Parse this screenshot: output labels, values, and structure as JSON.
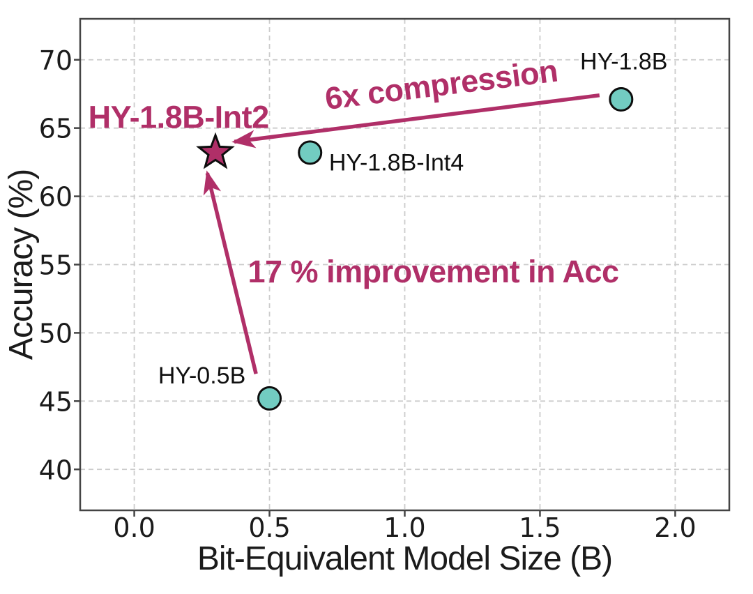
{
  "figure": {
    "background": "#ffffff",
    "title": ""
  },
  "colors": {
    "accent": "#b02f68",
    "marker_fill": "#72ccc1",
    "marker_edge": "#0d0d0d",
    "text": "#1b1b1b",
    "grid": "#cccccc",
    "spine": "#444444"
  },
  "chart_data": {
    "type": "scatter",
    "title": "",
    "xlabel": "Bit-Equivalent Model Size (B)",
    "ylabel": "Accuracy (%)",
    "xlim": [
      -0.2,
      2.2
    ],
    "ylim": [
      37,
      73
    ],
    "grid": true,
    "legend_position": "none",
    "xticks": [
      {
        "v": 0.0,
        "label": "0.0"
      },
      {
        "v": 0.5,
        "label": "0.5"
      },
      {
        "v": 1.0,
        "label": "1.0"
      },
      {
        "v": 1.5,
        "label": "1.5"
      },
      {
        "v": 2.0,
        "label": "2.0"
      }
    ],
    "yticks": [
      {
        "v": 40,
        "label": "40"
      },
      {
        "v": 45,
        "label": "45"
      },
      {
        "v": 50,
        "label": "50"
      },
      {
        "v": 55,
        "label": "55"
      },
      {
        "v": 60,
        "label": "60"
      },
      {
        "v": 65,
        "label": "65"
      },
      {
        "v": 70,
        "label": "70"
      }
    ],
    "points": [
      {
        "name": "HY-1.8B",
        "x": 1.8,
        "y": 67.1,
        "marker": "circle",
        "fill": "#72ccc1",
        "edge": "#0d0d0d",
        "label": {
          "text": "HY-1.8B",
          "x": 1.81,
          "y": 69.3,
          "anchor": "middle",
          "color": "#101010",
          "bold": false
        }
      },
      {
        "name": "HY-1.8B-Int4",
        "x": 0.65,
        "y": 63.2,
        "marker": "circle",
        "fill": "#72ccc1",
        "edge": "#0d0d0d",
        "label": {
          "text": "HY-1.8B-Int4",
          "x": 0.72,
          "y": 61.9,
          "anchor": "start",
          "color": "#101010",
          "bold": false
        }
      },
      {
        "name": "HY-0.5B",
        "x": 0.5,
        "y": 45.2,
        "marker": "circle",
        "fill": "#72ccc1",
        "edge": "#0d0d0d",
        "label": {
          "text": "HY-0.5B",
          "x": 0.25,
          "y": 46.3,
          "anchor": "middle",
          "color": "#101010",
          "bold": false
        }
      },
      {
        "name": "HY-1.8B-Int2",
        "x": 0.3,
        "y": 63.2,
        "marker": "star",
        "fill": "#b02f68",
        "edge": "#0d0d0d",
        "label": {
          "text": "HY-1.8B-Int2",
          "x": -0.17,
          "y": 65.0,
          "anchor": "start",
          "color": "#b02f68",
          "bold": true
        }
      }
    ],
    "annotations": [
      {
        "name": "compression-note",
        "text": "6x compression",
        "x": 1.14,
        "y": 67.4,
        "rotation": -7,
        "anchor": "middle",
        "color": "#b02f68"
      },
      {
        "name": "improvement-note",
        "text": "17 % improvement in Acc",
        "x": 0.42,
        "y": 53.7,
        "rotation": 0,
        "anchor": "start",
        "color": "#b02f68"
      }
    ],
    "arrows": [
      {
        "name": "compression-arrow",
        "from": [
          1.72,
          67.4
        ],
        "to": [
          0.37,
          64.0
        ],
        "color": "#b02f68"
      },
      {
        "name": "improvement-arrow",
        "from": [
          0.45,
          47.0
        ],
        "to": [
          0.27,
          61.7
        ],
        "color": "#b02f68"
      }
    ]
  }
}
